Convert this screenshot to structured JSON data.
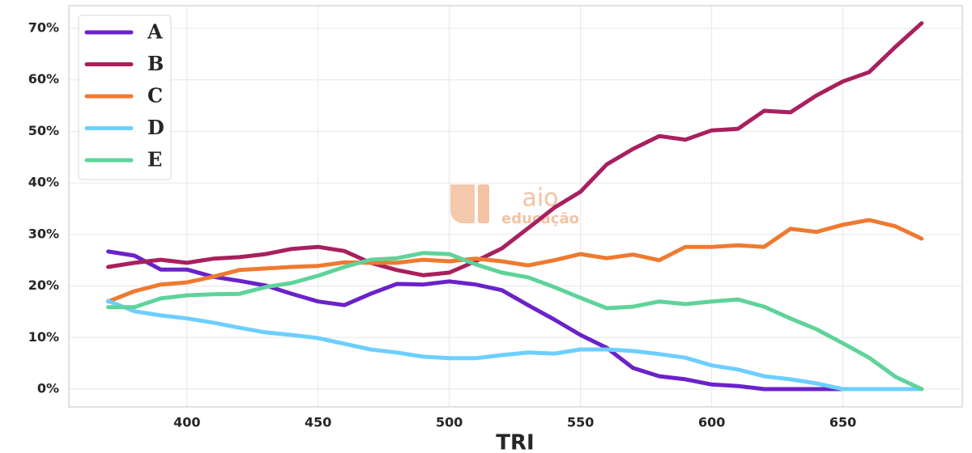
{
  "chart_data": {
    "type": "line",
    "xlabel": "TRI",
    "watermark": [
      "aio",
      "educação"
    ],
    "x": [
      370,
      380,
      390,
      400,
      410,
      420,
      430,
      440,
      450,
      460,
      470,
      480,
      490,
      500,
      510,
      520,
      530,
      540,
      550,
      560,
      570,
      580,
      590,
      600,
      610,
      620,
      630,
      640,
      650,
      660,
      670,
      680
    ],
    "series": [
      {
        "name": "A",
        "color": "#6a22c9",
        "values": [
          26.7,
          25.9,
          23.2,
          23.2,
          21.8,
          21.0,
          20.1,
          18.5,
          17.0,
          16.3,
          18.5,
          20.4,
          20.3,
          20.9,
          20.3,
          19.2,
          16.3,
          13.5,
          10.5,
          8.0,
          4.1,
          2.5,
          1.9,
          0.9,
          0.6,
          0,
          0,
          0,
          0,
          0,
          0,
          0
        ]
      },
      {
        "name": "B",
        "color": "#a8205e",
        "values": [
          23.7,
          24.5,
          25.1,
          24.5,
          25.3,
          25.6,
          26.2,
          27.2,
          27.6,
          26.8,
          24.5,
          23.1,
          22.1,
          22.6,
          24.8,
          27.3,
          31.2,
          35.2,
          38.3,
          43.6,
          46.6,
          49.1,
          48.4,
          50.2,
          50.5,
          54.0,
          53.7,
          57.0,
          59.7,
          61.5,
          66.4,
          71.0
        ]
      },
      {
        "name": "C",
        "color": "#ee7a30",
        "values": [
          17.0,
          19.0,
          20.3,
          20.7,
          21.8,
          23.1,
          23.4,
          23.7,
          23.9,
          24.6,
          24.5,
          24.5,
          25.1,
          24.8,
          25.3,
          24.8,
          24.0,
          25.0,
          26.2,
          25.4,
          26.1,
          25.0,
          27.6,
          27.6,
          27.9,
          27.6,
          31.1,
          30.5,
          31.9,
          32.8,
          31.6,
          29.2
        ]
      },
      {
        "name": "D",
        "color": "#6dcfff",
        "values": [
          17.1,
          15.1,
          14.3,
          13.7,
          12.9,
          11.9,
          11.0,
          10.5,
          9.9,
          8.8,
          7.7,
          7.1,
          6.3,
          6.0,
          6.0,
          6.6,
          7.1,
          6.9,
          7.7,
          7.7,
          7.4,
          6.8,
          6.1,
          4.6,
          3.8,
          2.5,
          1.9,
          1.1,
          0,
          0,
          0,
          0
        ]
      },
      {
        "name": "E",
        "color": "#5fd39a",
        "values": [
          15.9,
          15.9,
          17.6,
          18.2,
          18.4,
          18.5,
          19.8,
          20.6,
          22.0,
          23.7,
          25.1,
          25.4,
          26.4,
          26.2,
          24.2,
          22.6,
          21.7,
          19.8,
          17.7,
          15.7,
          16.0,
          17.0,
          16.5,
          17.0,
          17.4,
          16.0,
          13.7,
          11.6,
          8.9,
          6.1,
          2.4,
          0
        ]
      }
    ],
    "xlim": [
      355,
      695.5
    ],
    "xticks": [
      400,
      450,
      500,
      550,
      600,
      650
    ],
    "ylim": [
      -3.45,
      74.4
    ],
    "yticks": [
      {
        "value": 0,
        "label": "0%"
      },
      {
        "value": 10,
        "label": "10%"
      },
      {
        "value": 20,
        "label": "20%"
      },
      {
        "value": 30,
        "label": "30%"
      },
      {
        "value": 40,
        "label": "40%"
      },
      {
        "value": 50,
        "label": "50%"
      },
      {
        "value": 60,
        "label": "60%"
      },
      {
        "value": 70,
        "label": "70%"
      }
    ],
    "grid": true,
    "legend": "upper-left"
  }
}
